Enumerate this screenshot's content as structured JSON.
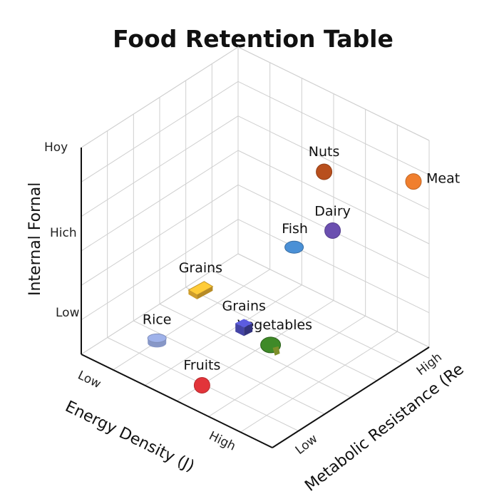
{
  "chart_data": {
    "type": "scatter",
    "title": "Food Retention Table",
    "xlabel": "Energy Density (J)",
    "ylabel": "Metabolic Resistance (Re",
    "zlabel": "Internal Fornal",
    "x_ticks": [
      "Low",
      "High"
    ],
    "y_ticks": [
      "Low",
      "High"
    ],
    "z_ticks": [
      "Low",
      "Hich",
      "Hoy"
    ],
    "xlim": [
      0,
      1
    ],
    "ylim": [
      0,
      1
    ],
    "zlim": [
      0,
      1
    ],
    "grid": true,
    "points": [
      {
        "label": "Meat",
        "x": 0.0,
        "y": 0.9,
        "z": 0.85,
        "color": "#f07f2e",
        "shape": "sphere"
      },
      {
        "label": "Fish",
        "x": 0.05,
        "y": 0.2,
        "z": 0.85,
        "color": "#4a90d6",
        "shape": "ellipse"
      },
      {
        "label": "Dairy",
        "x": 0.3,
        "y": 0.75,
        "z": 0.55,
        "color": "#6b4fb0",
        "shape": "sphere"
      },
      {
        "label": "Vegetables",
        "x": 0.05,
        "y": 0.05,
        "z": 0.45,
        "color": "#3f8a28",
        "shape": "broccoli"
      },
      {
        "label": "Nuts",
        "x": 0.55,
        "y": 1.0,
        "z": 0.6,
        "color": "#b84f1d",
        "shape": "sphere"
      },
      {
        "label": "Grains",
        "x": 0.6,
        "y": 0.55,
        "z": 0.05,
        "color": "#4444a6",
        "shape": "cube"
      },
      {
        "label": "Fruits",
        "x": 0.45,
        "y": 0.1,
        "z": 0.05,
        "color": "#e2343a",
        "shape": "sphere"
      },
      {
        "label": "Grains",
        "x": 0.95,
        "y": 0.7,
        "z": 0.0,
        "color": "#f3b933",
        "shape": "block"
      },
      {
        "label": "Rice",
        "x": 0.85,
        "y": 0.3,
        "z": 0.0,
        "color": "#9fb2ea",
        "shape": "disk"
      }
    ]
  }
}
